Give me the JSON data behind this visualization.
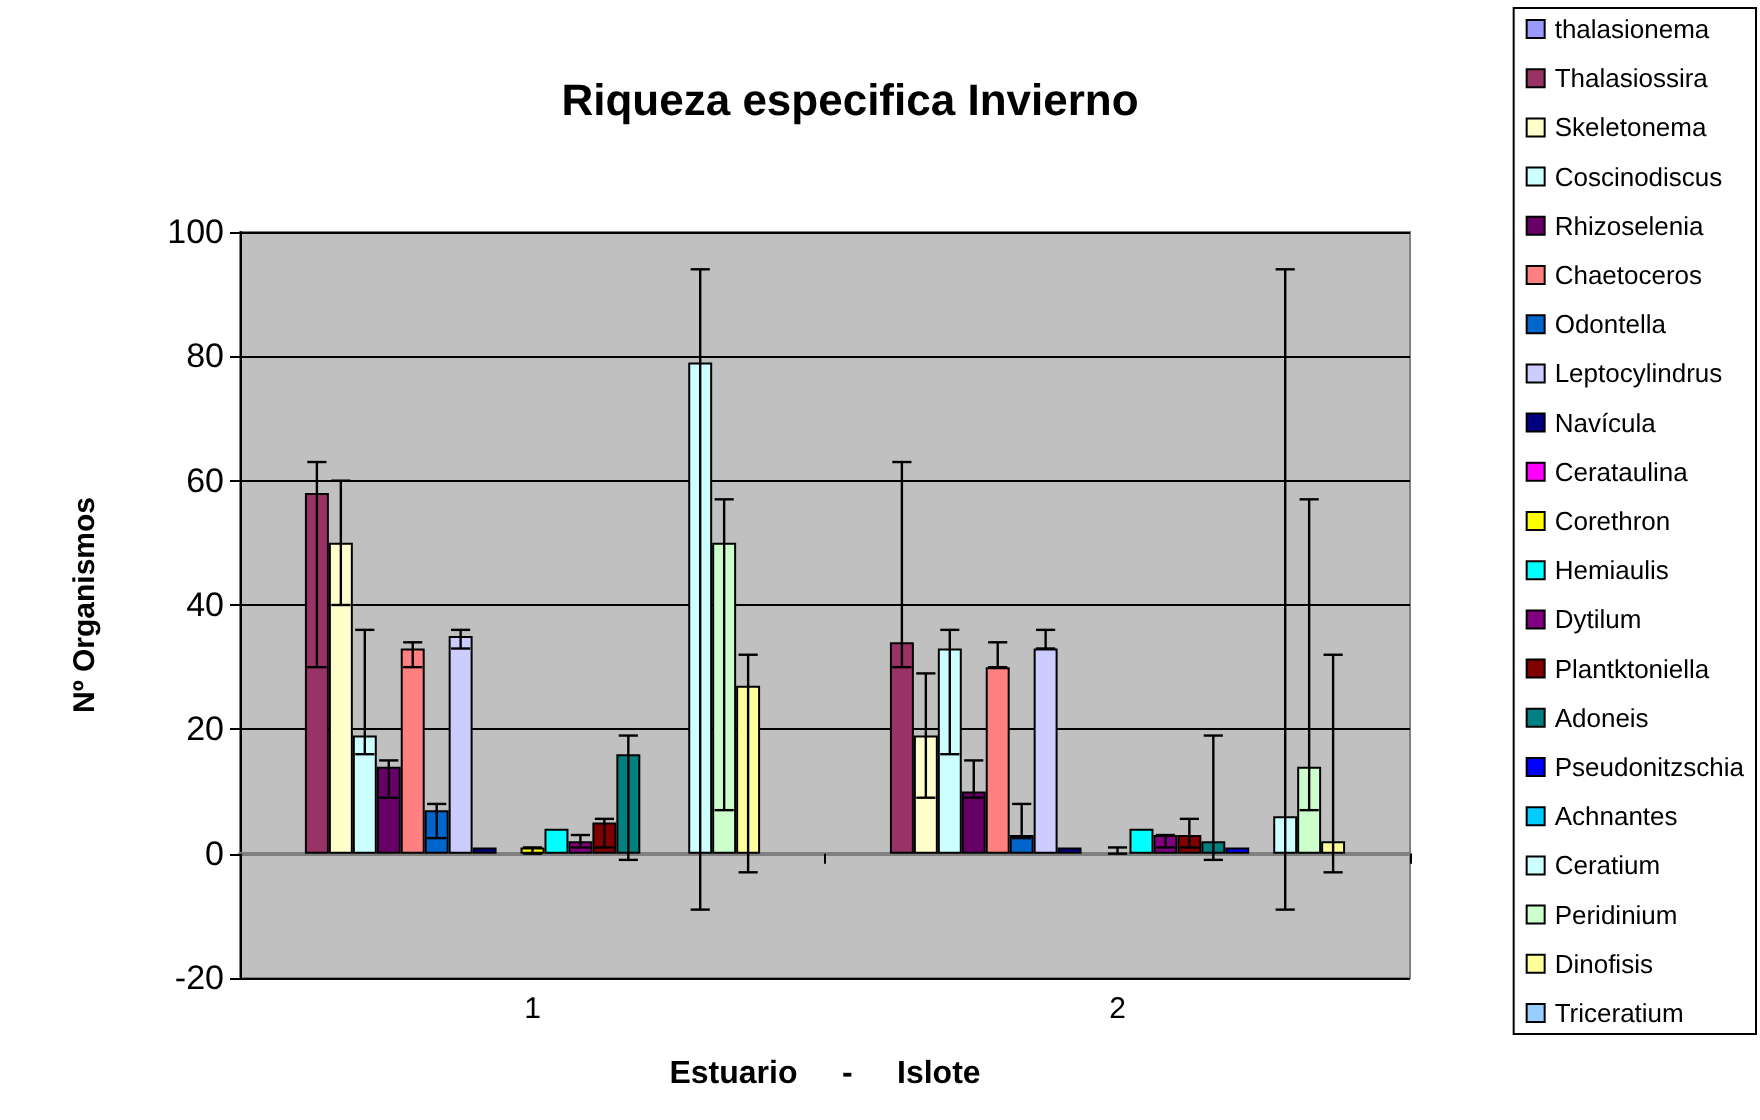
{
  "chart_data": {
    "type": "bar",
    "title": "Riqueza especifica Invierno",
    "xlabel": "Estuario     -     Islote",
    "ylabel": "Nº Organismos",
    "categories": [
      "1",
      "2"
    ],
    "ylim": [
      -20,
      100
    ],
    "yticks": [
      -20,
      0,
      20,
      40,
      60,
      80,
      100
    ],
    "grid": "y",
    "legend": "right",
    "series": [
      {
        "name": "thalasionema",
        "color": "#9999ff",
        "values": [
          0,
          0
        ],
        "errors": [
          null,
          null
        ]
      },
      {
        "name": "Thalasiossira",
        "color": "#993366",
        "values": [
          58,
          34
        ],
        "errors": [
          [
            30,
            63
          ],
          [
            30,
            63
          ]
        ]
      },
      {
        "name": "Skeletonema",
        "color": "#ffffcc",
        "values": [
          50,
          19
        ],
        "errors": [
          [
            40,
            60
          ],
          [
            9,
            29
          ]
        ]
      },
      {
        "name": "Coscinodiscus",
        "color": "#ccffff",
        "values": [
          19,
          33
        ],
        "errors": [
          [
            16,
            36
          ],
          [
            16,
            36
          ]
        ]
      },
      {
        "name": "Rhizoselenia",
        "color": "#660066",
        "values": [
          14,
          10
        ],
        "errors": [
          [
            9,
            15
          ],
          [
            9,
            15
          ]
        ]
      },
      {
        "name": "Chaetoceros",
        "color": "#ff8080",
        "values": [
          33,
          30
        ],
        "errors": [
          [
            30,
            34
          ],
          [
            30,
            34
          ]
        ]
      },
      {
        "name": "Odontella",
        "color": "#0066cc",
        "values": [
          7,
          3
        ],
        "errors": [
          [
            2.5,
            8
          ],
          [
            2.5,
            8
          ]
        ]
      },
      {
        "name": "Leptocylindrus",
        "color": "#ccccff",
        "values": [
          35,
          33
        ],
        "errors": [
          [
            33,
            36
          ],
          [
            33,
            36
          ]
        ]
      },
      {
        "name": "Navícula",
        "color": "#000080",
        "values": [
          1,
          1
        ],
        "errors": [
          null,
          null
        ]
      },
      {
        "name": "Cerataulina",
        "color": "#ff00ff",
        "values": [
          0,
          0
        ],
        "errors": [
          null,
          null
        ]
      },
      {
        "name": "Corethron",
        "color": "#ffff00",
        "values": [
          1,
          0
        ],
        "errors": [
          [
            0,
            1
          ],
          [
            0,
            1
          ]
        ]
      },
      {
        "name": "Hemiaulis",
        "color": "#00ffff",
        "values": [
          4,
          4
        ],
        "errors": [
          null,
          null
        ]
      },
      {
        "name": "Dytilum",
        "color": "#800080",
        "values": [
          2,
          3
        ],
        "errors": [
          [
            1,
            3
          ],
          [
            1,
            3
          ]
        ]
      },
      {
        "name": "Plantktoniella",
        "color": "#800000",
        "values": [
          5,
          3
        ],
        "errors": [
          [
            1,
            5.6
          ],
          [
            1,
            5.6
          ]
        ]
      },
      {
        "name": "Adoneis",
        "color": "#008080",
        "values": [
          16,
          2
        ],
        "errors": [
          [
            -1,
            19
          ],
          [
            -1,
            19
          ]
        ]
      },
      {
        "name": "Pseudonitzschia",
        "color": "#0000ff",
        "values": [
          0,
          1
        ],
        "errors": [
          null,
          null
        ]
      },
      {
        "name": "Achnantes",
        "color": "#00ccff",
        "values": [
          0,
          0
        ],
        "errors": [
          null,
          null
        ]
      },
      {
        "name": "Ceratium",
        "color": "#ccffff",
        "values": [
          79,
          6
        ],
        "errors": [
          [
            -9,
            94
          ],
          [
            -9,
            94
          ]
        ]
      },
      {
        "name": "Peridinium",
        "color": "#ccffcc",
        "values": [
          50,
          14
        ],
        "errors": [
          [
            7,
            57
          ],
          [
            7,
            57
          ]
        ]
      },
      {
        "name": "Dinofisis",
        "color": "#ffff99",
        "values": [
          27,
          2
        ],
        "errors": [
          [
            -3,
            32
          ],
          [
            -3,
            32
          ]
        ]
      },
      {
        "name": "Triceratium",
        "color": "#99ccff",
        "values": [
          0,
          0
        ],
        "errors": [
          null,
          null
        ]
      }
    ]
  }
}
